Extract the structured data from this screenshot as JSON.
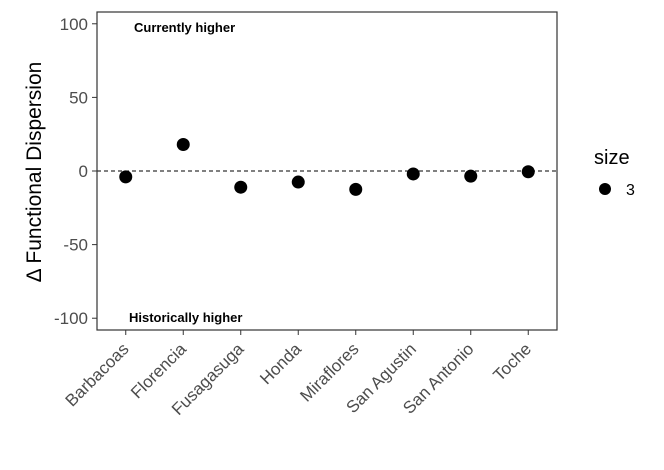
{
  "chart_data": {
    "type": "scatter",
    "title": "",
    "xlabel": "",
    "ylabel": "Δ Functional Dispersion",
    "categories": [
      "Barbacoas",
      "Florencia",
      "Fusagasuga",
      "Honda",
      "Miraflores",
      "San Agustin",
      "San Antonio",
      "Toche"
    ],
    "values": [
      -4,
      18,
      -11,
      -7.5,
      -12.5,
      -2,
      -3.5,
      -0.5
    ],
    "ylim": [
      -108,
      108
    ],
    "yticks": [
      -100,
      -50,
      0,
      50,
      100
    ],
    "reference_line": {
      "y": 0,
      "style": "dashed"
    },
    "annotations": {
      "top": "Currently higher",
      "bottom": "Historically higher"
    },
    "grid": false,
    "legend": {
      "title": "size",
      "entries": [
        "3"
      ],
      "placement": "right"
    },
    "point_color": "#000000"
  }
}
